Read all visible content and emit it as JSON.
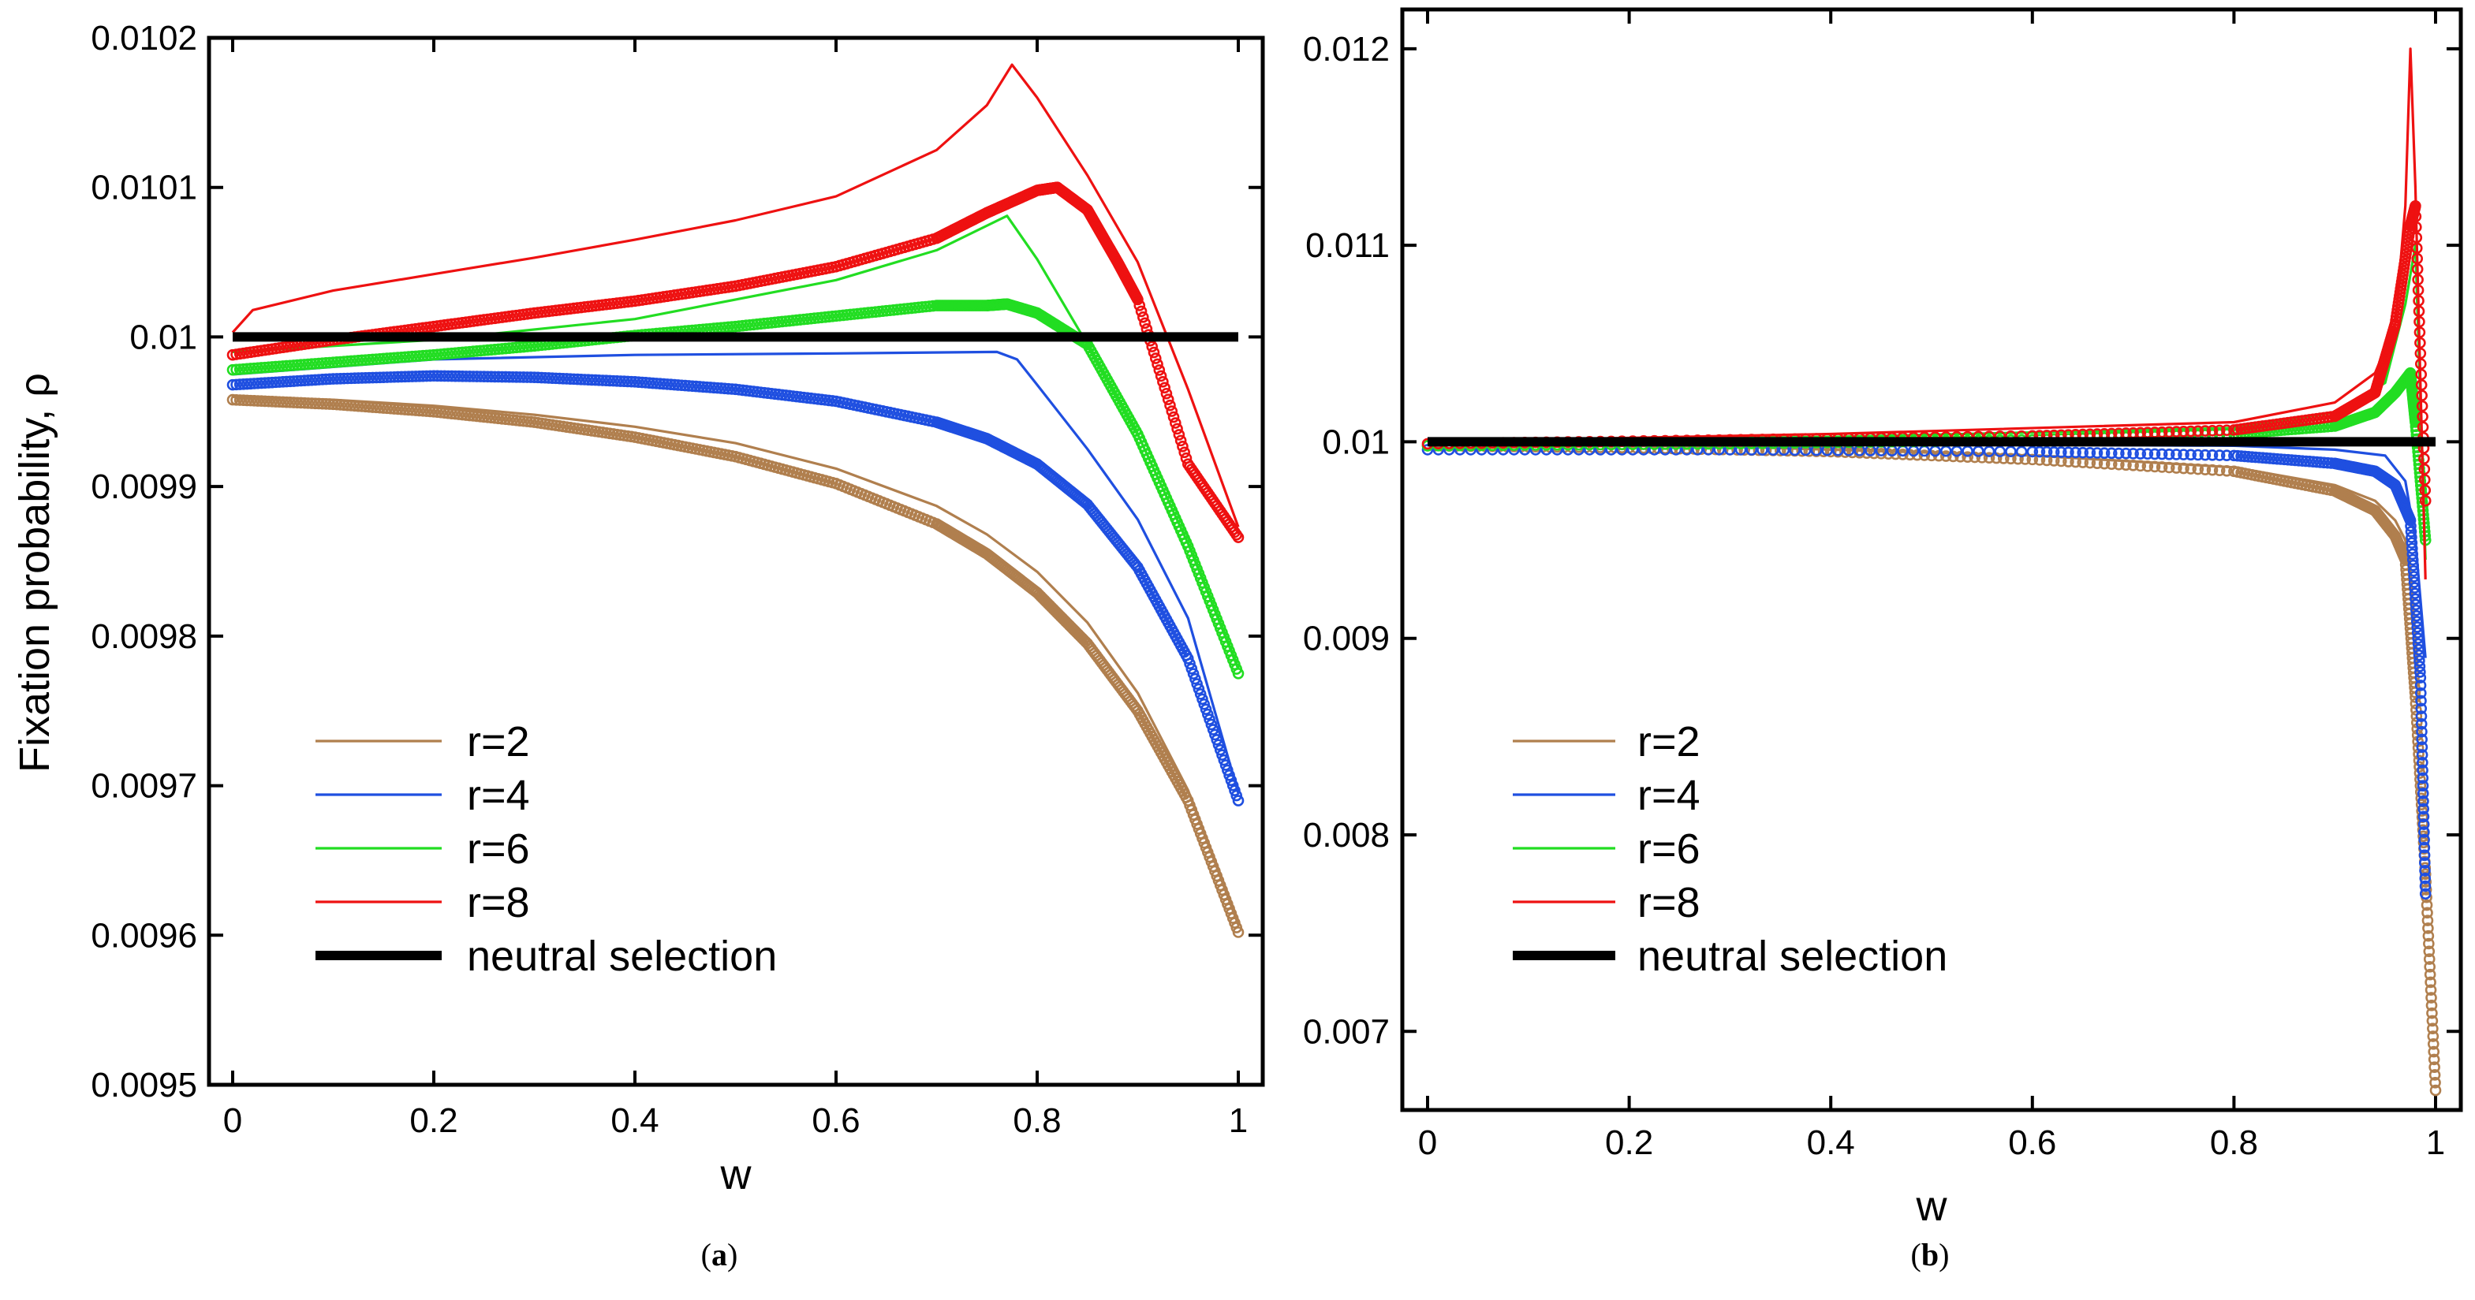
{
  "figure": {
    "panels": [
      {
        "caption_open": "(",
        "caption_letter": "a",
        "caption_close": ")"
      },
      {
        "caption_open": "(",
        "caption_letter": "b",
        "caption_close": ")"
      }
    ]
  },
  "chart_data": [
    {
      "id": "a",
      "type": "line",
      "title": "",
      "xlabel": "w",
      "ylabel": "Fixation probability, ρ",
      "xlim": [
        0,
        1
      ],
      "ylim": [
        0.0095,
        0.0102
      ],
      "xticks": [
        0,
        0.2,
        0.4,
        0.6,
        0.8,
        1
      ],
      "xtick_labels": [
        "0",
        "0.2",
        "0.4",
        "0.6",
        "0.8",
        "1"
      ],
      "yticks": [
        0.0095,
        0.0096,
        0.0097,
        0.0098,
        0.0099,
        0.01,
        0.0101,
        0.0102
      ],
      "ytick_labels": [
        "0.0095",
        "0.0096",
        "0.0097",
        "0.0098",
        "0.0099",
        "0.01",
        "0.0101",
        "0.0102"
      ],
      "legend_position": "bottom-left",
      "series": [
        {
          "name": "r=2",
          "color": "#b07f4e",
          "line": {
            "x": [
              0,
              0.1,
              0.2,
              0.3,
              0.4,
              0.5,
              0.6,
              0.7,
              0.75,
              0.8,
              0.85,
              0.9,
              0.95,
              1.0
            ],
            "y": [
              0.00996,
              0.009958,
              0.009954,
              0.009948,
              0.00994,
              0.009929,
              0.009912,
              0.009887,
              0.009868,
              0.009843,
              0.009809,
              0.009762,
              0.009697,
              0.009607
            ]
          },
          "markers": {
            "x": [
              0,
              0.1,
              0.2,
              0.3,
              0.4,
              0.5,
              0.6,
              0.7,
              0.75,
              0.8,
              0.85,
              0.9,
              0.95,
              1.0
            ],
            "y": [
              0.009958,
              0.009955,
              0.00995,
              0.009943,
              0.009933,
              0.00992,
              0.009902,
              0.009875,
              0.009855,
              0.009829,
              0.009795,
              0.00975,
              0.00969,
              0.009602
            ]
          }
        },
        {
          "name": "r=4",
          "color": "#1f4fe0",
          "line": {
            "x": [
              0,
              0.2,
              0.4,
              0.6,
              0.76,
              0.78,
              0.8,
              0.85,
              0.9,
              0.95,
              1.0
            ],
            "y": [
              0.009975,
              0.009985,
              0.009988,
              0.009989,
              0.00999,
              0.009985,
              0.009968,
              0.009925,
              0.009878,
              0.009812,
              0.009695
            ]
          },
          "markers": {
            "x": [
              0,
              0.1,
              0.2,
              0.3,
              0.4,
              0.5,
              0.6,
              0.7,
              0.75,
              0.8,
              0.85,
              0.9,
              0.95,
              1.0
            ],
            "y": [
              0.009968,
              0.009972,
              0.009974,
              0.009973,
              0.00997,
              0.009965,
              0.009957,
              0.009943,
              0.009932,
              0.009915,
              0.009888,
              0.009846,
              0.009785,
              0.00969
            ]
          }
        },
        {
          "name": "r=6",
          "color": "#22dd22",
          "line": {
            "x": [
              0,
              0.2,
              0.4,
              0.6,
              0.7,
              0.77,
              0.8,
              0.85,
              0.9,
              0.95,
              1.0
            ],
            "y": [
              0.00999,
              0.009998,
              0.010012,
              0.010038,
              0.010058,
              0.010081,
              0.010052,
              0.009995,
              0.009935,
              0.009862,
              0.009778
            ]
          },
          "markers": {
            "x": [
              0,
              0.1,
              0.2,
              0.3,
              0.4,
              0.5,
              0.6,
              0.7,
              0.75,
              0.77,
              0.8,
              0.85,
              0.9,
              0.95,
              1.0
            ],
            "y": [
              0.009978,
              0.009983,
              0.009988,
              0.009994,
              0.010001,
              0.010007,
              0.010014,
              0.010021,
              0.010021,
              0.010022,
              0.010016,
              0.009995,
              0.009935,
              0.00986,
              0.009775
            ]
          }
        },
        {
          "name": "r=8",
          "color": "#ee1111",
          "line": {
            "x": [
              0,
              0.02,
              0.1,
              0.2,
              0.3,
              0.4,
              0.5,
              0.6,
              0.7,
              0.75,
              0.775,
              0.8,
              0.85,
              0.9,
              0.95,
              1.0
            ],
            "y": [
              0.010003,
              0.010018,
              0.010031,
              0.010042,
              0.010053,
              0.010065,
              0.010078,
              0.010094,
              0.010125,
              0.010155,
              0.010182,
              0.01016,
              0.010108,
              0.01005,
              0.009965,
              0.009873
            ]
          },
          "markers": {
            "x": [
              0,
              0.1,
              0.2,
              0.3,
              0.4,
              0.5,
              0.6,
              0.7,
              0.75,
              0.8,
              0.82,
              0.85,
              0.88,
              0.9,
              0.95,
              1.0
            ],
            "y": [
              0.009988,
              0.009998,
              0.010007,
              0.010016,
              0.010024,
              0.010034,
              0.010047,
              0.010066,
              0.010083,
              0.010098,
              0.0101,
              0.010085,
              0.01005,
              0.010025,
              0.009915,
              0.009866
            ]
          }
        },
        {
          "name": "neutral selection",
          "color": "#000000",
          "line": {
            "x": [
              0,
              1
            ],
            "y": [
              0.01,
              0.01
            ]
          }
        }
      ]
    },
    {
      "id": "b",
      "type": "line",
      "title": "",
      "xlabel": "w",
      "ylabel": "",
      "xlim": [
        0,
        1
      ],
      "ylim": [
        0.0066,
        0.0122
      ],
      "xticks": [
        0,
        0.2,
        0.4,
        0.6,
        0.8,
        1
      ],
      "xtick_labels": [
        "0",
        "0.2",
        "0.4",
        "0.6",
        "0.8",
        "1"
      ],
      "yticks": [
        0.007,
        0.008,
        0.009,
        0.01,
        0.011,
        0.012
      ],
      "ytick_labels": [
        "0.007",
        "0.008",
        "0.009",
        "0.01",
        "0.011",
        "0.012"
      ],
      "legend_position": "bottom-left",
      "series": [
        {
          "name": "r=2",
          "color": "#b07f4e",
          "line": {
            "x": [
              0,
              0.3,
              0.6,
              0.8,
              0.9,
              0.94,
              0.96,
              0.97,
              0.975,
              0.98
            ],
            "y": [
              0.00999,
              0.009975,
              0.00993,
              0.00987,
              0.00978,
              0.0097,
              0.0096,
              0.0095,
              0.0093,
              0.0089
            ]
          },
          "markers": {
            "x": [
              0,
              0.2,
              0.4,
              0.6,
              0.8,
              0.9,
              0.94,
              0.96,
              0.97,
              0.98,
              0.99,
              1.0
            ],
            "y": [
              0.00998,
              0.00997,
              0.00995,
              0.00991,
              0.00985,
              0.00975,
              0.00965,
              0.00952,
              0.0094,
              0.0087,
              0.0078,
              0.0067
            ]
          }
        },
        {
          "name": "r=4",
          "color": "#1f4fe0",
          "line": {
            "x": [
              0,
              0.4,
              0.8,
              0.9,
              0.95,
              0.97,
              0.98,
              0.99
            ],
            "y": [
              0.00999,
              0.00999,
              0.00998,
              0.00996,
              0.00993,
              0.0098,
              0.0095,
              0.0089
            ]
          },
          "markers": {
            "x": [
              0,
              0.3,
              0.6,
              0.8,
              0.9,
              0.94,
              0.96,
              0.975,
              0.985,
              0.99
            ],
            "y": [
              0.00996,
              0.00996,
              0.00995,
              0.00993,
              0.00989,
              0.00985,
              0.00978,
              0.0096,
              0.0088,
              0.0077
            ]
          }
        },
        {
          "name": "r=6",
          "color": "#22dd22",
          "line": {
            "x": [
              0,
              0.4,
              0.8,
              0.9,
              0.95,
              0.97,
              0.98,
              0.99
            ],
            "y": [
              0.01,
              0.010025,
              0.01007,
              0.01015,
              0.0103,
              0.0107,
              0.011,
              0.0094
            ]
          },
          "markers": {
            "x": [
              0,
              0.3,
              0.6,
              0.8,
              0.9,
              0.94,
              0.96,
              0.975,
              0.98,
              0.99
            ],
            "y": [
              0.00998,
              0.00999,
              0.01001,
              0.01004,
              0.01008,
              0.01015,
              0.01025,
              0.01035,
              0.0101,
              0.0095
            ]
          }
        },
        {
          "name": "r=8",
          "color": "#ee1111",
          "line": {
            "x": [
              0,
              0.4,
              0.8,
              0.9,
              0.94,
              0.96,
              0.97,
              0.975,
              0.98,
              0.99
            ],
            "y": [
              0.01,
              0.01004,
              0.0101,
              0.0102,
              0.01035,
              0.0106,
              0.0112,
              0.012,
              0.0113,
              0.0093
            ]
          },
          "markers": {
            "x": [
              0,
              0.3,
              0.6,
              0.8,
              0.9,
              0.94,
              0.96,
              0.975,
              0.98,
              0.99
            ],
            "y": [
              0.00999,
              0.01001,
              0.01003,
              0.01006,
              0.01013,
              0.01025,
              0.0106,
              0.0111,
              0.0112,
              0.0097
            ]
          }
        },
        {
          "name": "neutral selection",
          "color": "#000000",
          "line": {
            "x": [
              0,
              1
            ],
            "y": [
              0.01,
              0.01
            ]
          }
        }
      ]
    }
  ]
}
